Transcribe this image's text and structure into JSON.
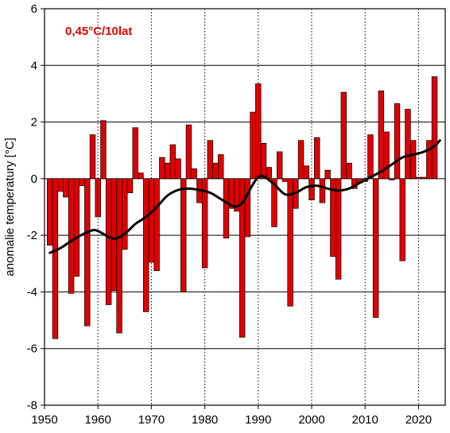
{
  "chart_data": {
    "type": "bar",
    "ylabel": "anomalie temperatury [°C]",
    "xlabel": "",
    "annotation": "0,45°C/10lat",
    "annotation_color": "#e00000",
    "bar_color": "#e00000",
    "bar_edge_color": "#000000",
    "trend_color": "#000000",
    "xlim": [
      1950,
      2025
    ],
    "ylim": [
      -8,
      6
    ],
    "xticks": [
      1950,
      1960,
      1970,
      1980,
      1990,
      2000,
      2010,
      2020
    ],
    "yticks": [
      -8,
      -6,
      -4,
      -2,
      0,
      2,
      4,
      6
    ],
    "grid": true,
    "years": [
      1951,
      1952,
      1953,
      1954,
      1955,
      1956,
      1957,
      1958,
      1959,
      1960,
      1961,
      1962,
      1963,
      1964,
      1965,
      1966,
      1967,
      1968,
      1969,
      1970,
      1971,
      1972,
      1973,
      1974,
      1975,
      1976,
      1977,
      1978,
      1979,
      1980,
      1981,
      1982,
      1983,
      1984,
      1985,
      1986,
      1987,
      1988,
      1989,
      1990,
      1991,
      1992,
      1993,
      1994,
      1995,
      1996,
      1997,
      1998,
      1999,
      2000,
      2001,
      2002,
      2003,
      2004,
      2005,
      2006,
      2007,
      2008,
      2009,
      2010,
      2011,
      2012,
      2013,
      2014,
      2015,
      2016,
      2017,
      2018,
      2019,
      2020,
      2021,
      2022,
      2023,
      2024
    ],
    "values": [
      -2.35,
      -5.65,
      -0.45,
      -0.65,
      -4.05,
      -3.45,
      -0.25,
      -5.2,
      1.55,
      -1.35,
      2.05,
      -4.45,
      -3.95,
      -5.45,
      -2.5,
      -0.5,
      1.8,
      0.2,
      -4.7,
      -2.95,
      -3.25,
      0.75,
      0.55,
      1.2,
      0.7,
      -4.0,
      1.9,
      0.35,
      -0.85,
      -3.15,
      1.35,
      0.55,
      0.85,
      -2.1,
      -1.05,
      -1.15,
      -5.6,
      -2.05,
      2.35,
      3.35,
      1.25,
      0.4,
      -1.7,
      0.95,
      -0.1,
      -4.5,
      -1.05,
      1.35,
      0.45,
      -0.75,
      1.45,
      -0.85,
      0.3,
      -2.75,
      -3.55,
      3.05,
      0.55,
      -0.35,
      -0.15,
      -0.1,
      1.55,
      -4.9,
      3.1,
      1.65,
      -0.05,
      2.65,
      -2.9,
      2.45,
      1.35,
      0.05,
      0.05,
      1.35,
      3.6,
      0.0
    ],
    "trend_x": [
      1951,
      1953,
      1955,
      1957,
      1959,
      1960,
      1961,
      1963,
      1965,
      1967,
      1969,
      1971,
      1973,
      1975,
      1977,
      1979,
      1981,
      1983,
      1985,
      1986,
      1987,
      1988,
      1989,
      1990,
      1991,
      1993,
      1995,
      1997,
      1999,
      2001,
      2003,
      2005,
      2007,
      2009,
      2011,
      2013,
      2015,
      2017,
      2019,
      2021,
      2023,
      2024
    ],
    "trend_y": [
      -2.62,
      -2.45,
      -2.2,
      -1.98,
      -1.82,
      -1.85,
      -1.95,
      -2.12,
      -1.95,
      -1.6,
      -1.35,
      -1.0,
      -0.6,
      -0.4,
      -0.35,
      -0.4,
      -0.5,
      -0.72,
      -0.95,
      -0.98,
      -0.85,
      -0.55,
      -0.2,
      0.05,
      0.08,
      -0.2,
      -0.55,
      -0.5,
      -0.3,
      -0.25,
      -0.35,
      -0.42,
      -0.35,
      -0.15,
      0.05,
      0.25,
      0.5,
      0.75,
      0.85,
      0.95,
      1.15,
      1.35
    ]
  }
}
